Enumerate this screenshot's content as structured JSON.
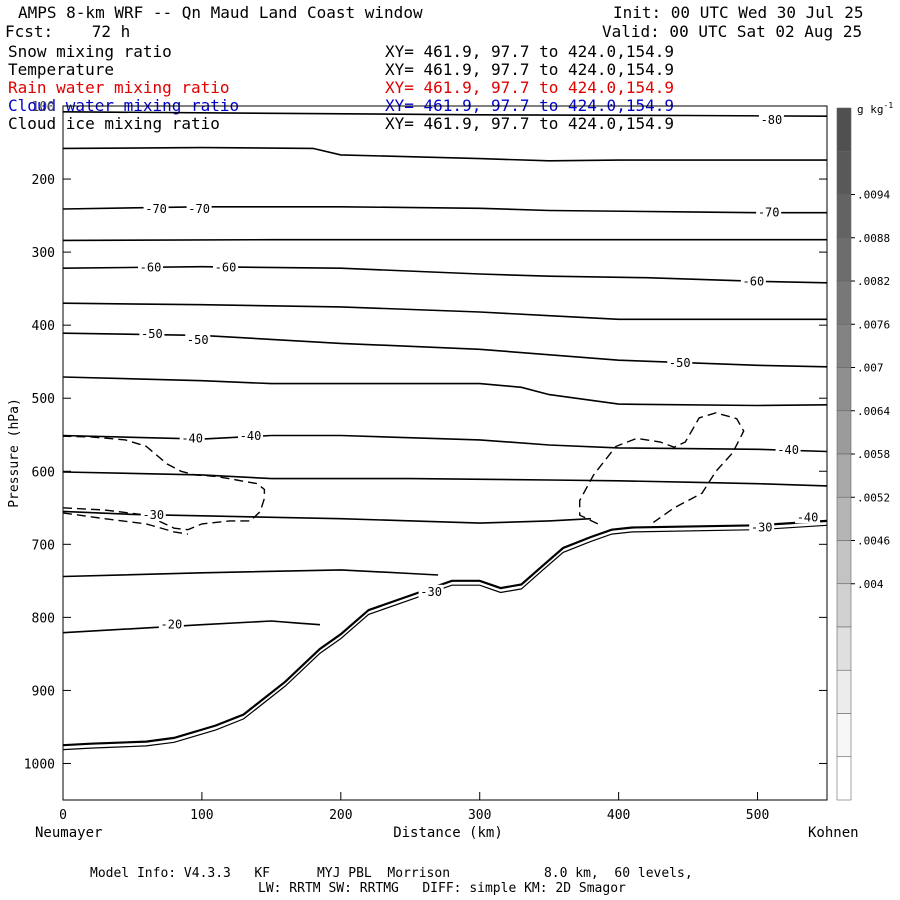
{
  "header": {
    "title": "AMPS 8-km WRF -- Qn Maud Land Coast window",
    "init": "Init: 00 UTC Wed 30 Jul 25",
    "fcst": "Fcst:    72 h",
    "valid": "Valid: 00 UTC Sat 02 Aug 25",
    "fields": [
      {
        "name": "Snow mixing ratio",
        "xy": "XY= 461.9, 97.7 to 424.0,154.9",
        "color": "#000000"
      },
      {
        "name": "Temperature",
        "xy": "XY= 461.9, 97.7 to 424.0,154.9",
        "color": "#000000"
      },
      {
        "name": "Rain water mixing ratio",
        "xy": "XY= 461.9, 97.7 to 424.0,154.9",
        "color": "#e00000"
      },
      {
        "name": "Cloud water mixing ratio",
        "xy": "XY= 461.9, 97.7 to 424.0,154.9",
        "color": "#0000cc"
      },
      {
        "name": "Cloud ice mixing ratio",
        "xy": "XY= 461.9, 97.7 to 424.0,154.9",
        "color": "#000000"
      }
    ]
  },
  "footer": {
    "line1": "Model Info: V4.3.3   KF      MYJ PBL  Morrison            8.0 km,  60 levels,",
    "line2": "LW: RRTM SW: RRTMG   DIFF: simple KM: 2D Smagor"
  },
  "chart_data": {
    "type": "contour",
    "xlabel": "Distance (km)",
    "ylabel": "Pressure (hPa)",
    "xlim": [
      0,
      550
    ],
    "ylim": [
      1050,
      100
    ],
    "x_ticks": [
      0,
      100,
      200,
      300,
      400,
      500
    ],
    "y_ticks": [
      100,
      200,
      300,
      400,
      500,
      600,
      700,
      800,
      900,
      1000
    ],
    "left_endpoint": "Neumayer",
    "right_endpoint": "Kohnen",
    "colorbar": {
      "unit": "g kg",
      "unit_exp": "-1",
      "labels": [
        ".0094",
        ".0088",
        ".0082",
        ".0076",
        ".007",
        ".0064",
        ".0058",
        ".0052",
        ".0046",
        ".004"
      ],
      "colors": [
        "#505050",
        "#595959",
        "#636363",
        "#6d6d6d",
        "#787878",
        "#838383",
        "#8f8f8f",
        "#9b9b9b",
        "#a8a8a8",
        "#b5b5b5",
        "#c3c3c3",
        "#d1d1d1",
        "#dfdfdf",
        "#ececec",
        "#f7f7f7",
        "#ffffff"
      ]
    },
    "isotherms": [
      {
        "points": [
          [
            0,
            108
          ],
          [
            150,
            110
          ],
          [
            300,
            112
          ],
          [
            450,
            113
          ],
          [
            550,
            114
          ]
        ]
      },
      {
        "points": [
          [
            0,
            158
          ],
          [
            100,
            157
          ],
          [
            180,
            158
          ],
          [
            200,
            167
          ],
          [
            300,
            172
          ],
          [
            350,
            175
          ],
          [
            400,
            174
          ],
          [
            500,
            174
          ],
          [
            550,
            174
          ]
        ]
      },
      {
        "level": -70,
        "label": "-70",
        "points": [
          [
            0,
            241
          ],
          [
            100,
            238
          ],
          [
            200,
            238
          ],
          [
            300,
            240
          ],
          [
            350,
            243
          ],
          [
            450,
            245
          ],
          [
            500,
            246
          ],
          [
            550,
            246
          ]
        ]
      },
      {
        "points": [
          [
            0,
            284
          ],
          [
            150,
            283
          ],
          [
            300,
            283
          ],
          [
            450,
            283
          ],
          [
            550,
            283
          ]
        ]
      },
      {
        "level": -60,
        "label": "-60",
        "points": [
          [
            0,
            322
          ],
          [
            100,
            320
          ],
          [
            200,
            322
          ],
          [
            300,
            330
          ],
          [
            350,
            333
          ],
          [
            420,
            335
          ],
          [
            500,
            340
          ],
          [
            550,
            342
          ]
        ]
      },
      {
        "points": [
          [
            0,
            370
          ],
          [
            100,
            372
          ],
          [
            200,
            375
          ],
          [
            300,
            382
          ],
          [
            350,
            387
          ],
          [
            400,
            392
          ],
          [
            450,
            392
          ],
          [
            500,
            392
          ],
          [
            550,
            392
          ]
        ]
      },
      {
        "level": -50,
        "label": "-50",
        "points": [
          [
            0,
            411
          ],
          [
            100,
            414
          ],
          [
            200,
            425
          ],
          [
            300,
            433
          ],
          [
            400,
            448
          ],
          [
            500,
            455
          ],
          [
            550,
            457
          ]
        ]
      },
      {
        "points": [
          [
            0,
            471
          ],
          [
            100,
            476
          ],
          [
            150,
            480
          ],
          [
            200,
            480
          ],
          [
            300,
            480
          ],
          [
            330,
            485
          ],
          [
            350,
            495
          ],
          [
            400,
            508
          ],
          [
            500,
            510
          ],
          [
            550,
            509
          ]
        ]
      },
      {
        "level": -40,
        "label": "-40",
        "points": [
          [
            0,
            551
          ],
          [
            100,
            556
          ],
          [
            150,
            551
          ],
          [
            200,
            551
          ],
          [
            300,
            557
          ],
          [
            350,
            564
          ],
          [
            400,
            568
          ],
          [
            500,
            570
          ],
          [
            550,
            573
          ]
        ]
      },
      {
        "points": [
          [
            0,
            601
          ],
          [
            100,
            605
          ],
          [
            150,
            610
          ],
          [
            250,
            610
          ],
          [
            350,
            612
          ],
          [
            400,
            613
          ],
          [
            450,
            615
          ],
          [
            500,
            617
          ],
          [
            550,
            620
          ]
        ]
      },
      {
        "level": -30,
        "label": "-30",
        "points": [
          [
            0,
            655
          ],
          [
            50,
            659
          ],
          [
            100,
            661
          ],
          [
            200,
            665
          ],
          [
            300,
            671
          ],
          [
            350,
            668
          ],
          [
            380,
            665
          ]
        ]
      },
      {
        "points": [
          [
            0,
            744
          ],
          [
            100,
            739
          ],
          [
            200,
            735
          ],
          [
            250,
            740
          ],
          [
            270,
            742
          ]
        ]
      },
      {
        "level": -20,
        "label": "-20",
        "points": [
          [
            0,
            821
          ],
          [
            100,
            810
          ],
          [
            150,
            805
          ],
          [
            170,
            808
          ],
          [
            185,
            810
          ]
        ]
      }
    ],
    "contour_labels": [
      {
        "text": "-80",
        "x": 510,
        "y": 119
      },
      {
        "text": "-70",
        "x": 67,
        "y": 241
      },
      {
        "text": "-70",
        "x": 98,
        "y": 241
      },
      {
        "text": "-70",
        "x": 508,
        "y": 246
      },
      {
        "text": "-60",
        "x": 63,
        "y": 321
      },
      {
        "text": "-60",
        "x": 117,
        "y": 321
      },
      {
        "text": "-60",
        "x": 497,
        "y": 340
      },
      {
        "text": "-50",
        "x": 64,
        "y": 412
      },
      {
        "text": "-50",
        "x": 97,
        "y": 420
      },
      {
        "text": "-50",
        "x": 444,
        "y": 452
      },
      {
        "text": "-40",
        "x": 93,
        "y": 555
      },
      {
        "text": "-40",
        "x": 135,
        "y": 552
      },
      {
        "text": "-40",
        "x": 522,
        "y": 571
      },
      {
        "text": "-30",
        "x": 65,
        "y": 660
      },
      {
        "text": "-30",
        "x": 265,
        "y": 765
      },
      {
        "text": "-30",
        "x": 503,
        "y": 677
      },
      {
        "text": "-20",
        "x": 78,
        "y": 810
      },
      {
        "text": "-40",
        "x": 536,
        "y": 663
      }
    ],
    "terrain": {
      "points": [
        [
          0,
          975
        ],
        [
          20,
          973
        ],
        [
          60,
          970
        ],
        [
          80,
          965
        ],
        [
          110,
          948
        ],
        [
          130,
          933
        ],
        [
          160,
          888
        ],
        [
          185,
          843
        ],
        [
          200,
          823
        ],
        [
          220,
          790
        ],
        [
          250,
          770
        ],
        [
          280,
          750
        ],
        [
          300,
          750
        ],
        [
          315,
          760
        ],
        [
          330,
          755
        ],
        [
          345,
          730
        ],
        [
          360,
          705
        ],
        [
          380,
          690
        ],
        [
          395,
          680
        ],
        [
          410,
          677
        ],
        [
          500,
          674
        ],
        [
          550,
          668
        ]
      ]
    },
    "dashed_contours": [
      {
        "points": [
          [
            0,
            650
          ],
          [
            30,
            653
          ],
          [
            60,
            660
          ],
          [
            80,
            678
          ],
          [
            90,
            680
          ],
          [
            100,
            672
          ],
          [
            120,
            668
          ],
          [
            135,
            668
          ],
          [
            142,
            655
          ],
          [
            145,
            637
          ],
          [
            145,
            625
          ],
          [
            140,
            617
          ],
          [
            125,
            612
          ],
          [
            110,
            607
          ],
          [
            95,
            605
          ],
          [
            85,
            600
          ],
          [
            75,
            590
          ],
          [
            60,
            566
          ],
          [
            45,
            557
          ],
          [
            20,
            553
          ],
          [
            0,
            552
          ]
        ]
      },
      {
        "points": [
          [
            0,
            657
          ],
          [
            30,
            665
          ],
          [
            60,
            672
          ],
          [
            80,
            683
          ],
          [
            90,
            686
          ]
        ]
      },
      {
        "points": [
          [
            385,
            672
          ],
          [
            372,
            660
          ],
          [
            372,
            640
          ],
          [
            382,
            605
          ],
          [
            398,
            566
          ],
          [
            413,
            555
          ],
          [
            430,
            560
          ],
          [
            440,
            567
          ],
          [
            448,
            560
          ],
          [
            458,
            527
          ],
          [
            470,
            520
          ],
          [
            485,
            528
          ],
          [
            490,
            545
          ],
          [
            482,
            575
          ],
          [
            470,
            600
          ],
          [
            460,
            630
          ],
          [
            440,
            650
          ],
          [
            425,
            670
          ]
        ]
      }
    ]
  }
}
